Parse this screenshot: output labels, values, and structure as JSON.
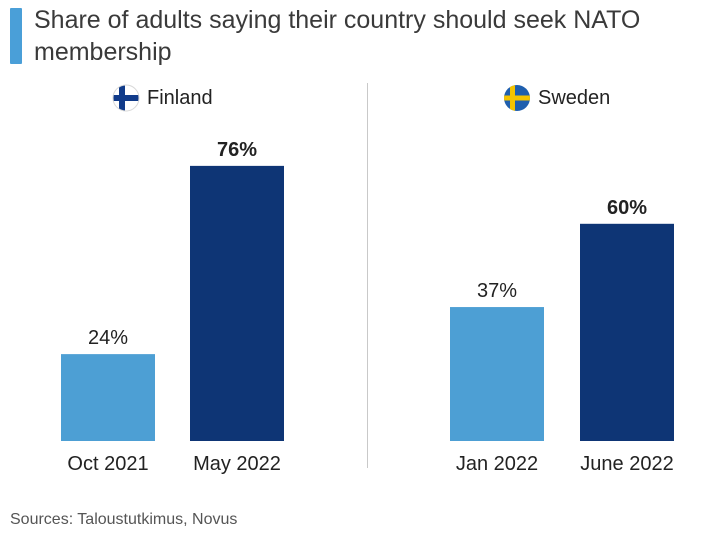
{
  "title": "Share of adults saying their country should seek NATO membership",
  "colors": {
    "title_accent": "#4a9fd8",
    "light_bar": "#4d9fd4",
    "dark_bar": "#0e3575"
  },
  "chart_data": [
    {
      "type": "bar",
      "title": "Finland",
      "flag_icon": "finland-flag-icon",
      "categories": [
        "Oct 2021",
        "May 2022"
      ],
      "values": [
        24,
        76
      ],
      "labels": [
        "24%",
        "76%"
      ],
      "ylim": [
        0,
        100
      ]
    },
    {
      "type": "bar",
      "title": "Sweden",
      "flag_icon": "sweden-flag-icon",
      "categories": [
        "Jan 2022",
        "June 2022"
      ],
      "values": [
        37,
        60
      ],
      "labels": [
        "37%",
        "60%"
      ],
      "ylim": [
        0,
        100
      ]
    }
  ],
  "source": "Sources: Taloustutkimus, Novus"
}
